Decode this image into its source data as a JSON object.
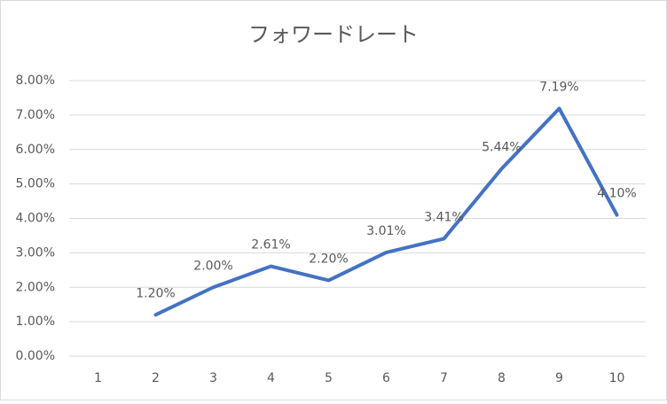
{
  "chart_data": {
    "type": "line",
    "title": "フォワードレート",
    "categories": [
      "1",
      "2",
      "3",
      "4",
      "5",
      "6",
      "7",
      "8",
      "9",
      "10"
    ],
    "series": [
      {
        "name": "フォワードレート",
        "color": "#4472c4",
        "values": [
          null,
          1.2,
          2.0,
          2.61,
          2.2,
          3.01,
          3.41,
          5.44,
          7.19,
          4.1
        ],
        "value_labels": [
          null,
          "1.20%",
          "2.00%",
          "2.61%",
          "2.20%",
          "3.01%",
          "3.41%",
          "5.44%",
          "7.19%",
          "4.10%"
        ]
      }
    ],
    "ylim": [
      0,
      8
    ],
    "yticks": [
      {
        "value": 0,
        "label": "0.00%"
      },
      {
        "value": 1,
        "label": "1.00%"
      },
      {
        "value": 2,
        "label": "2.00%"
      },
      {
        "value": 3,
        "label": "3.00%"
      },
      {
        "value": 4,
        "label": "4.00%"
      },
      {
        "value": 5,
        "label": "5.00%"
      },
      {
        "value": 6,
        "label": "6.00%"
      },
      {
        "value": 7,
        "label": "7.00%"
      },
      {
        "value": 8,
        "label": "8.00%"
      }
    ],
    "grid": true
  }
}
